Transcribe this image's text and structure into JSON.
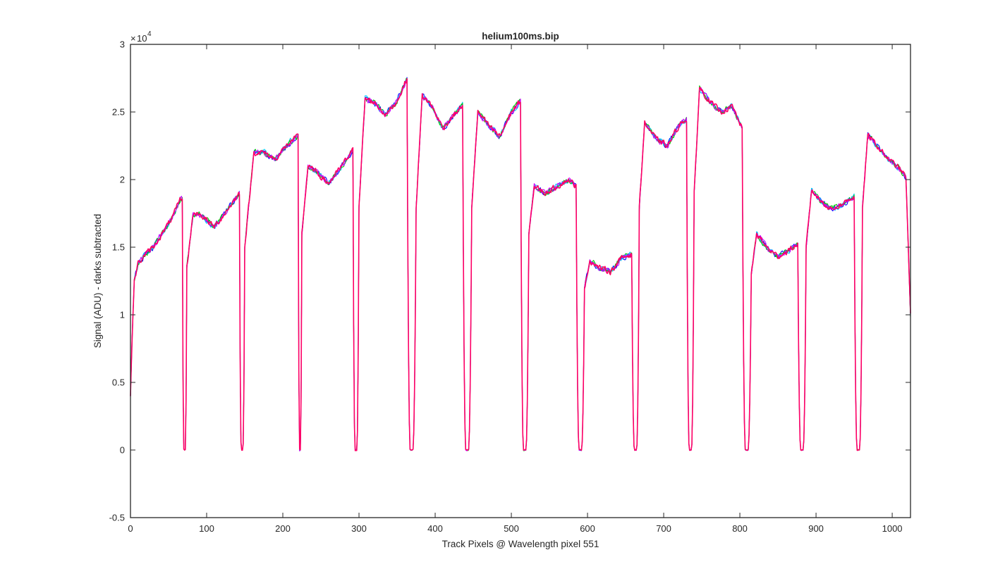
{
  "chart_data": {
    "type": "line",
    "title": "helium100ms.bip",
    "xlabel": "Track Pixels @ Wavelength pixel 551",
    "ylabel": "Signal (ADU) - darks subtracted",
    "y_exponent_label": "10",
    "y_exponent_power": "4",
    "xlim": [
      0,
      1024
    ],
    "ylim": [
      -0.5,
      3
    ],
    "y_multiplier": 10000,
    "xticks": [
      0,
      100,
      200,
      300,
      400,
      500,
      600,
      700,
      800,
      900,
      1000
    ],
    "xtick_labels": [
      "0",
      "100",
      "200",
      "300",
      "400",
      "500",
      "600",
      "700",
      "800",
      "900",
      "1000"
    ],
    "yticks": [
      -0.5,
      0,
      0.5,
      1,
      1.5,
      2,
      2.5,
      3
    ],
    "ytick_labels": [
      "-0.5",
      "0",
      "0.5",
      "1",
      "1.5",
      "2",
      "2.5",
      "3"
    ],
    "grid": false,
    "box": true,
    "series_colors": [
      "#0000ff",
      "#00c8ff",
      "#00cc00",
      "#cc00ff",
      "#ff0066"
    ],
    "segments": [
      {
        "start": 0,
        "end": 68,
        "points": [
          [
            0,
            0.4
          ],
          [
            2,
            0.8
          ],
          [
            5,
            1.25
          ],
          [
            10,
            1.38
          ],
          [
            20,
            1.45
          ],
          [
            30,
            1.5
          ],
          [
            45,
            1.63
          ],
          [
            55,
            1.72
          ],
          [
            65,
            1.85
          ],
          [
            68,
            1.86
          ]
        ]
      },
      {
        "start": 74,
        "end": 143,
        "points": [
          [
            74,
            1.35
          ],
          [
            82,
            1.74
          ],
          [
            90,
            1.75
          ],
          [
            100,
            1.7
          ],
          [
            110,
            1.65
          ],
          [
            120,
            1.72
          ],
          [
            130,
            1.8
          ],
          [
            143,
            1.9
          ]
        ]
      },
      {
        "start": 150,
        "end": 220,
        "points": [
          [
            150,
            1.5
          ],
          [
            162,
            2.2
          ],
          [
            175,
            2.2
          ],
          [
            190,
            2.15
          ],
          [
            200,
            2.22
          ],
          [
            210,
            2.28
          ],
          [
            220,
            2.32
          ]
        ]
      },
      {
        "start": 225,
        "end": 292,
        "points": [
          [
            225,
            1.6
          ],
          [
            233,
            2.1
          ],
          [
            245,
            2.05
          ],
          [
            260,
            1.97
          ],
          [
            275,
            2.08
          ],
          [
            292,
            2.22
          ]
        ]
      },
      {
        "start": 300,
        "end": 363,
        "points": [
          [
            300,
            1.8
          ],
          [
            308,
            2.6
          ],
          [
            320,
            2.57
          ],
          [
            335,
            2.48
          ],
          [
            350,
            2.58
          ],
          [
            363,
            2.75
          ]
        ]
      },
      {
        "start": 375,
        "end": 436,
        "points": [
          [
            375,
            1.8
          ],
          [
            383,
            2.62
          ],
          [
            395,
            2.55
          ],
          [
            410,
            2.38
          ],
          [
            425,
            2.48
          ],
          [
            436,
            2.55
          ]
        ]
      },
      {
        "start": 448,
        "end": 512,
        "points": [
          [
            448,
            1.8
          ],
          [
            456,
            2.5
          ],
          [
            470,
            2.4
          ],
          [
            485,
            2.32
          ],
          [
            500,
            2.5
          ],
          [
            512,
            2.58
          ]
        ]
      },
      {
        "start": 523,
        "end": 585,
        "points": [
          [
            523,
            1.6
          ],
          [
            530,
            1.95
          ],
          [
            545,
            1.9
          ],
          [
            560,
            1.95
          ],
          [
            575,
            2.0
          ],
          [
            585,
            1.95
          ]
        ]
      },
      {
        "start": 596,
        "end": 658,
        "points": [
          [
            596,
            1.2
          ],
          [
            603,
            1.4
          ],
          [
            615,
            1.35
          ],
          [
            630,
            1.32
          ],
          [
            645,
            1.42
          ],
          [
            658,
            1.45
          ]
        ]
      },
      {
        "start": 668,
        "end": 730,
        "points": [
          [
            668,
            1.8
          ],
          [
            675,
            2.42
          ],
          [
            690,
            2.3
          ],
          [
            705,
            2.25
          ],
          [
            720,
            2.4
          ],
          [
            730,
            2.45
          ]
        ]
      },
      {
        "start": 740,
        "end": 803,
        "points": [
          [
            740,
            1.9
          ],
          [
            747,
            2.68
          ],
          [
            760,
            2.58
          ],
          [
            775,
            2.5
          ],
          [
            790,
            2.54
          ],
          [
            803,
            2.38
          ]
        ]
      },
      {
        "start": 815,
        "end": 876,
        "points": [
          [
            815,
            1.3
          ],
          [
            822,
            1.6
          ],
          [
            835,
            1.5
          ],
          [
            850,
            1.43
          ],
          [
            865,
            1.48
          ],
          [
            876,
            1.52
          ]
        ]
      },
      {
        "start": 887,
        "end": 950,
        "points": [
          [
            887,
            1.5
          ],
          [
            894,
            1.92
          ],
          [
            905,
            1.85
          ],
          [
            920,
            1.78
          ],
          [
            935,
            1.82
          ],
          [
            950,
            1.88
          ]
        ]
      },
      {
        "start": 961,
        "end": 1024,
        "points": [
          [
            961,
            1.8
          ],
          [
            968,
            2.33
          ],
          [
            980,
            2.25
          ],
          [
            995,
            2.15
          ],
          [
            1010,
            2.08
          ],
          [
            1018,
            2.02
          ],
          [
            1024,
            1.0
          ]
        ]
      }
    ]
  }
}
